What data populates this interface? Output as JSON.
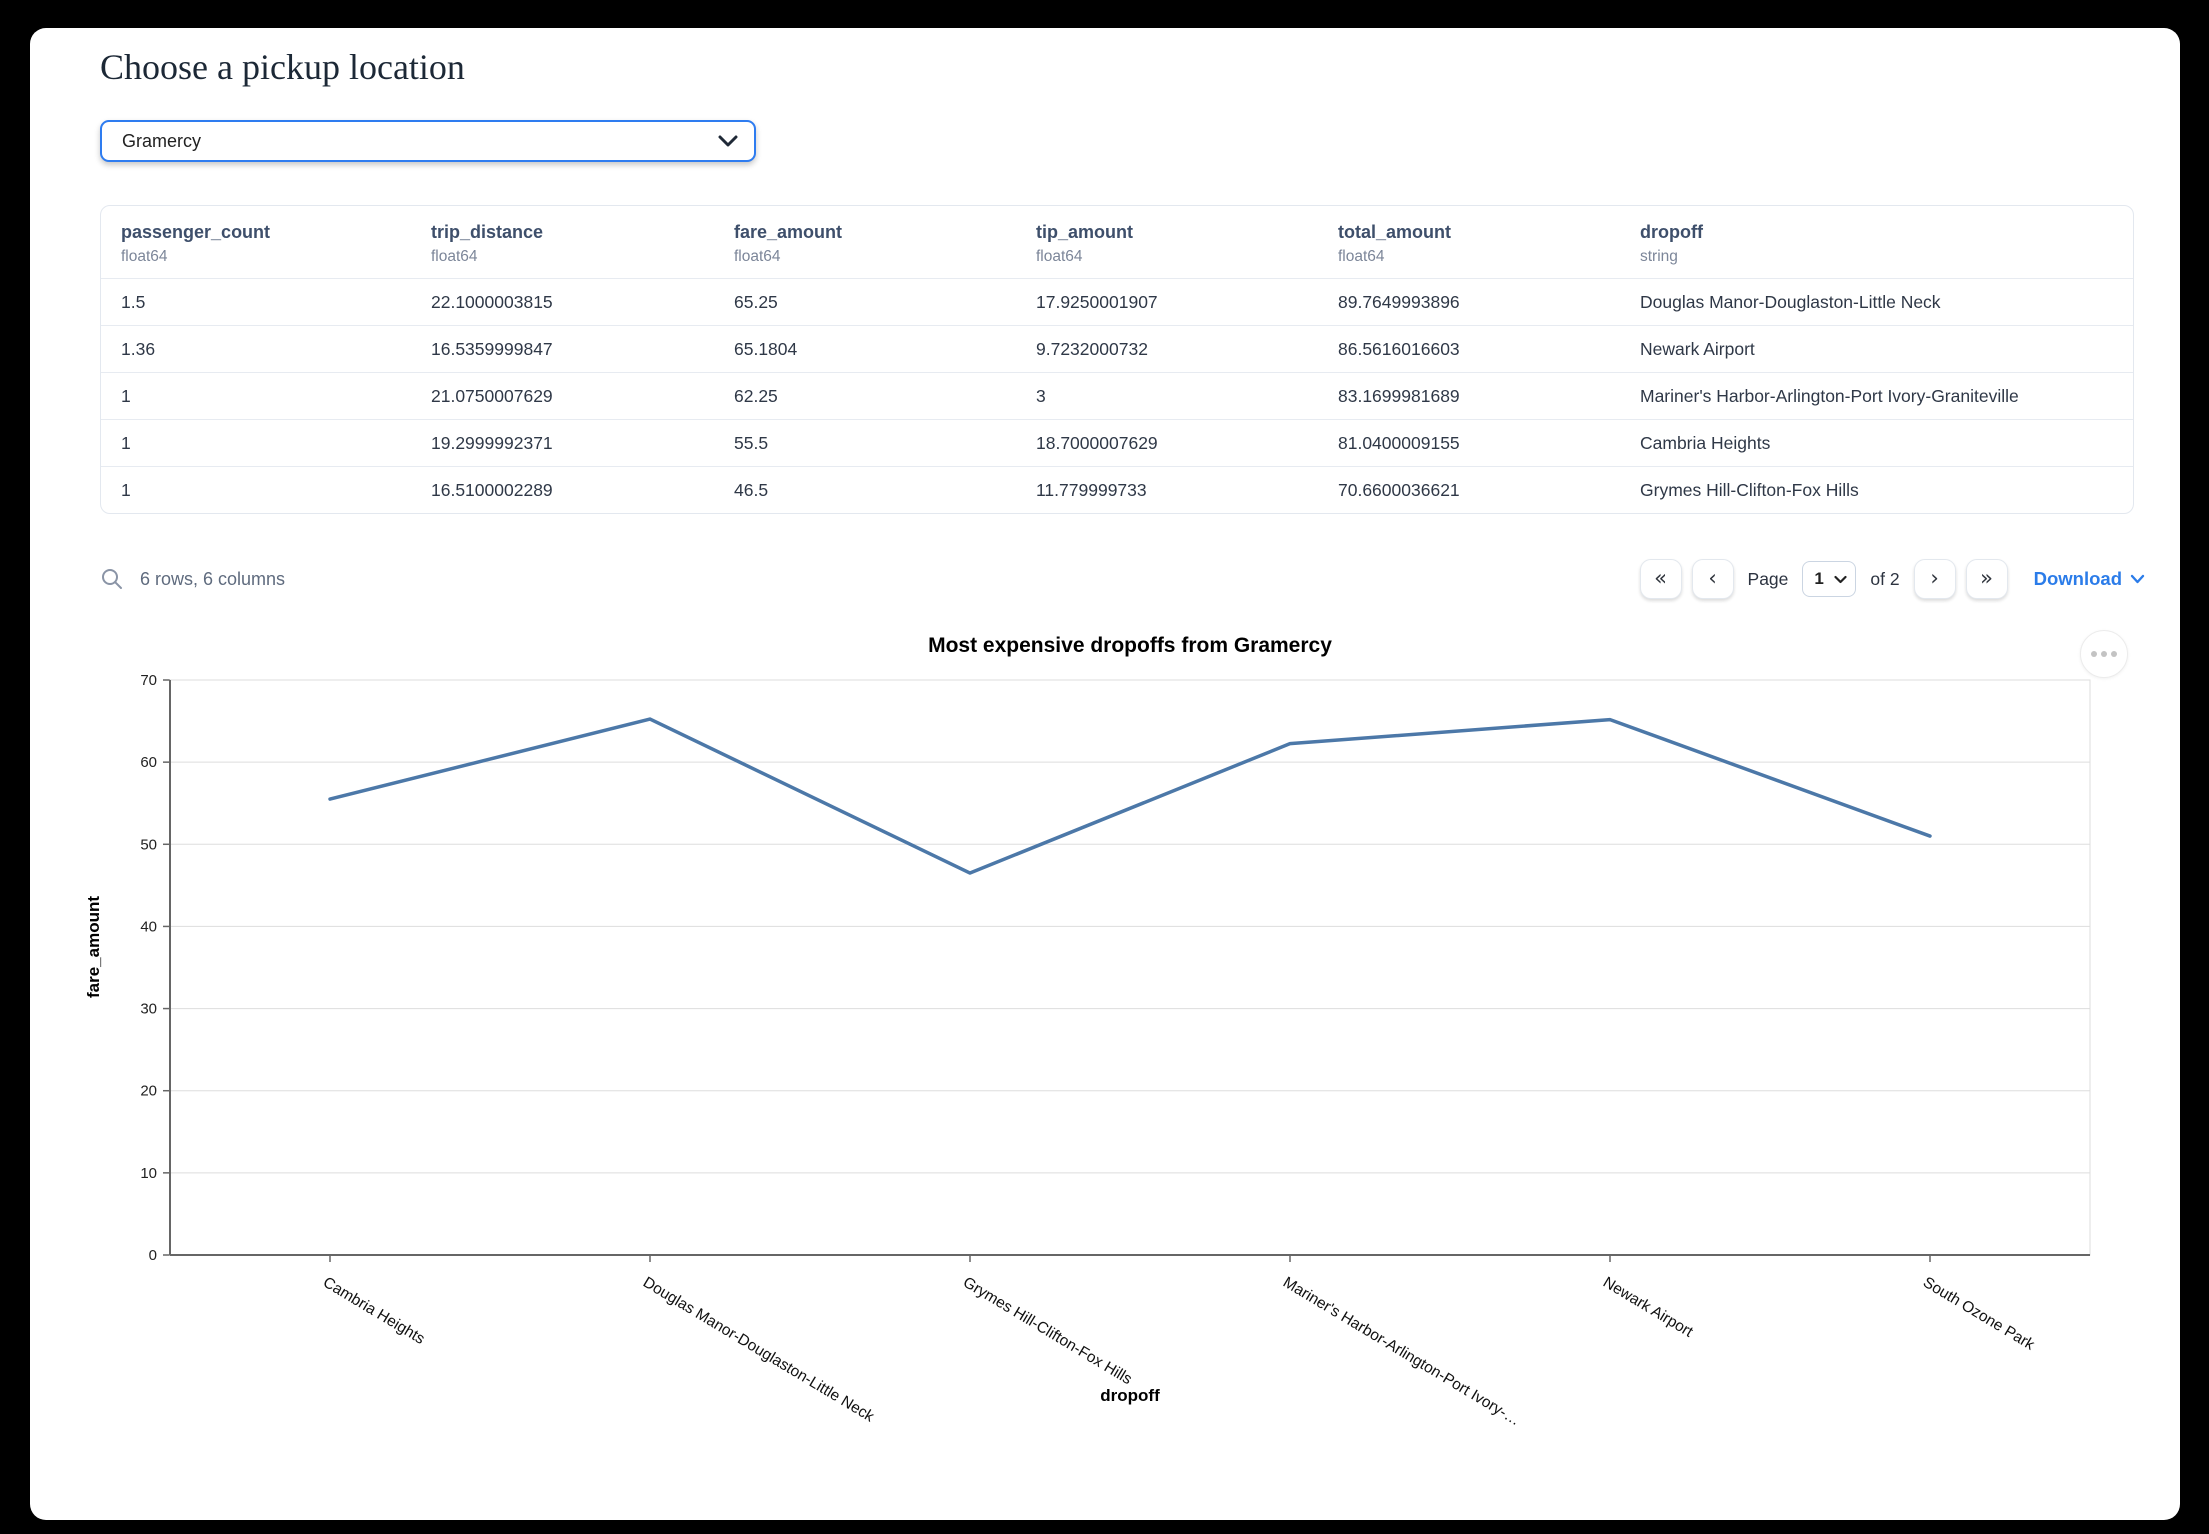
{
  "page": {
    "title": "Choose a pickup location"
  },
  "pickup_select": {
    "value": "Gramercy"
  },
  "table": {
    "columns": [
      {
        "name": "passenger_count",
        "dtype": "float64"
      },
      {
        "name": "trip_distance",
        "dtype": "float64"
      },
      {
        "name": "fare_amount",
        "dtype": "float64"
      },
      {
        "name": "tip_amount",
        "dtype": "float64"
      },
      {
        "name": "total_amount",
        "dtype": "float64"
      },
      {
        "name": "dropoff",
        "dtype": "string"
      }
    ],
    "rows": [
      [
        "1.5",
        "22.1000003815",
        "65.25",
        "17.9250001907",
        "89.7649993896",
        "Douglas Manor-Douglaston-Little Neck"
      ],
      [
        "1.36",
        "16.5359999847",
        "65.1804",
        "9.7232000732",
        "86.5616016603",
        "Newark Airport"
      ],
      [
        "1",
        "21.0750007629",
        "62.25",
        "3",
        "83.1699981689",
        "Mariner's Harbor-Arlington-Port Ivory-Graniteville"
      ],
      [
        "1",
        "19.2999992371",
        "55.5",
        "18.7000007629",
        "81.0400009155",
        "Cambria Heights"
      ],
      [
        "1",
        "16.5100002289",
        "46.5",
        "11.779999733",
        "70.6600036621",
        "Grymes Hill-Clifton-Fox Hills"
      ]
    ],
    "summary": "6 rows, 6 columns",
    "pagination": {
      "first_icon": "«",
      "prev_icon": "‹",
      "page_label": "Page",
      "current_page": "1",
      "of_label": "of 2",
      "next_icon": "›",
      "last_icon": "»",
      "download_label": "Download"
    }
  },
  "chart_data": {
    "type": "line",
    "title": "Most expensive dropoffs from Gramercy",
    "categories": [
      "Cambria Heights",
      "Douglas Manor-Douglaston-Little Neck",
      "Grymes Hill-Clifton-Fox Hills",
      "Mariner's Harbor-Arlington-Port Ivory-…",
      "Newark Airport",
      "South Ozone Park"
    ],
    "values": [
      55.5,
      65.25,
      46.5,
      62.25,
      65.1804,
      51
    ],
    "xlabel": "dropoff",
    "ylabel": "fare_amount",
    "ylim": [
      0,
      70
    ],
    "yticks": [
      0,
      10,
      20,
      30,
      40,
      50,
      60,
      70
    ],
    "grid": true,
    "legend": "none",
    "line_color": "#4c78a8"
  },
  "colors": {
    "accent_blue": "#2b7ce9",
    "line_blue": "#4c78a8"
  }
}
